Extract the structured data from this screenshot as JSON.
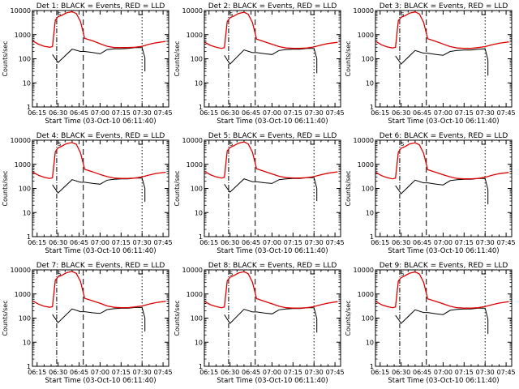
{
  "chart_data": {
    "type": "line",
    "scale": "log",
    "ylim": [
      1,
      10000
    ],
    "y_ticks": [
      1,
      10,
      100,
      1000,
      10000
    ],
    "y_tick_labels": [
      "1",
      "10",
      "100",
      "1000",
      "10000"
    ],
    "x_tick_labels": [
      "06:15",
      "06:30",
      "06:45",
      "07:00",
      "07:15",
      "07:30",
      "07:45"
    ],
    "ylabel": "Counts/sec",
    "xlabel": "Start Time (03-Oct-10 06:11:40)",
    "grid": false,
    "colors": {
      "events": "#000000",
      "lld": "#e00000"
    },
    "markers": [
      {
        "kind": "dash-dot",
        "time": "06:29"
      },
      {
        "kind": "dashed",
        "time": "06:48"
      },
      {
        "kind": "dotted",
        "time": "07:30"
      }
    ],
    "panels": [
      {
        "title": "Det 1: BLACK = Events, RED = LLD",
        "lld": {
          "time": [
            "06:12",
            "06:16",
            "06:20",
            "06:24",
            "06:26",
            "06:28",
            "06:30",
            "06:33",
            "06:36",
            "06:40",
            "06:43",
            "06:46",
            "06:49",
            "06:55",
            "07:00",
            "07:05",
            "07:10",
            "07:15",
            "07:20",
            "07:25",
            "07:30",
            "07:35",
            "07:40",
            "07:47"
          ],
          "value": [
            550,
            400,
            330,
            300,
            320,
            4000,
            5500,
            6500,
            8000,
            9000,
            7500,
            3500,
            700,
            550,
            420,
            330,
            290,
            290,
            290,
            300,
            330,
            400,
            460,
            530
          ]
        },
        "events": {
          "time": [
            "06:26",
            "06:28",
            "06:30",
            "06:40",
            "06:46",
            "06:49",
            "06:55",
            "07:00",
            "07:05",
            "07:10",
            "07:15",
            "07:20",
            "07:25",
            "07:30",
            "07:32",
            "07:32"
          ],
          "value": [
            150,
            100,
            70,
            250,
            200,
            200,
            180,
            160,
            240,
            260,
            260,
            270,
            290,
            290,
            110,
            30
          ]
        }
      },
      {
        "title": "Det 2: BLACK = Events, RED = LLD",
        "lld": {
          "time": [
            "06:12",
            "06:16",
            "06:20",
            "06:24",
            "06:26",
            "06:28",
            "06:30",
            "06:33",
            "06:36",
            "06:40",
            "06:43",
            "06:46",
            "06:49",
            "06:55",
            "07:00",
            "07:05",
            "07:10",
            "07:15",
            "07:20",
            "07:25",
            "07:30",
            "07:35",
            "07:40",
            "07:47"
          ],
          "value": [
            480,
            360,
            300,
            270,
            290,
            3500,
            5000,
            6000,
            7500,
            8500,
            7000,
            3200,
            650,
            500,
            400,
            320,
            280,
            270,
            270,
            280,
            310,
            370,
            430,
            480
          ]
        },
        "events": {
          "time": [
            "06:26",
            "06:28",
            "06:30",
            "06:40",
            "06:46",
            "06:49",
            "06:55",
            "07:00",
            "07:05",
            "07:10",
            "07:15",
            "07:20",
            "07:25",
            "07:30",
            "07:32",
            "07:32"
          ],
          "value": [
            140,
            90,
            60,
            230,
            180,
            180,
            160,
            150,
            220,
            240,
            250,
            250,
            270,
            270,
            100,
            25
          ]
        }
      },
      {
        "title": "Det 3: BLACK = Events, RED = LLD",
        "lld": {
          "time": [
            "06:12",
            "06:16",
            "06:20",
            "06:24",
            "06:26",
            "06:28",
            "06:30",
            "06:33",
            "06:36",
            "06:40",
            "06:43",
            "06:46",
            "06:49",
            "06:55",
            "07:00",
            "07:05",
            "07:10",
            "07:15",
            "07:20",
            "07:25",
            "07:30",
            "07:35",
            "07:40",
            "07:47"
          ],
          "value": [
            520,
            380,
            310,
            280,
            300,
            3800,
            5200,
            6200,
            7800,
            8800,
            7200,
            3300,
            680,
            520,
            410,
            320,
            280,
            270,
            270,
            290,
            320,
            380,
            440,
            500
          ]
        },
        "events": {
          "time": [
            "06:26",
            "06:28",
            "06:30",
            "06:40",
            "06:46",
            "06:49",
            "06:55",
            "07:00",
            "07:05",
            "07:10",
            "07:15",
            "07:20",
            "07:25",
            "07:30",
            "07:32",
            "07:32"
          ],
          "value": [
            130,
            90,
            60,
            220,
            170,
            170,
            150,
            140,
            200,
            220,
            230,
            230,
            250,
            260,
            90,
            20
          ]
        }
      },
      {
        "title": "Det 4: BLACK = Events, RED = LLD",
        "lld": {
          "time": [
            "06:12",
            "06:16",
            "06:20",
            "06:24",
            "06:26",
            "06:28",
            "06:30",
            "06:33",
            "06:36",
            "06:40",
            "06:43",
            "06:46",
            "06:49",
            "06:55",
            "07:00",
            "07:05",
            "07:10",
            "07:15",
            "07:20",
            "07:25",
            "07:30",
            "07:35",
            "07:40",
            "07:47"
          ],
          "value": [
            470,
            350,
            290,
            260,
            280,
            3300,
            4800,
            5800,
            7200,
            8000,
            6800,
            3000,
            620,
            480,
            380,
            310,
            270,
            260,
            260,
            270,
            300,
            360,
            420,
            470
          ]
        },
        "events": {
          "time": [
            "06:26",
            "06:28",
            "06:30",
            "06:40",
            "06:46",
            "06:49",
            "06:55",
            "07:00",
            "07:05",
            "07:10",
            "07:15",
            "07:20",
            "07:25",
            "07:30",
            "07:32",
            "07:32"
          ],
          "value": [
            140,
            95,
            65,
            230,
            180,
            180,
            160,
            150,
            220,
            240,
            250,
            250,
            270,
            270,
            100,
            28
          ]
        }
      },
      {
        "title": "Det 5: BLACK = Events, RED = LLD",
        "lld": {
          "time": [
            "06:12",
            "06:16",
            "06:20",
            "06:24",
            "06:26",
            "06:28",
            "06:30",
            "06:33",
            "06:36",
            "06:40",
            "06:43",
            "06:46",
            "06:49",
            "06:55",
            "07:00",
            "07:05",
            "07:10",
            "07:15",
            "07:20",
            "07:25",
            "07:30",
            "07:35",
            "07:40",
            "07:47"
          ],
          "value": [
            500,
            370,
            300,
            270,
            290,
            3600,
            5000,
            6000,
            7500,
            8500,
            7000,
            3200,
            650,
            500,
            400,
            320,
            280,
            270,
            270,
            280,
            310,
            370,
            430,
            490
          ]
        },
        "events": {
          "time": [
            "06:26",
            "06:28",
            "06:30",
            "06:40",
            "06:46",
            "06:49",
            "06:55",
            "07:00",
            "07:05",
            "07:10",
            "07:15",
            "07:20",
            "07:25",
            "07:30",
            "07:32",
            "07:32"
          ],
          "value": [
            150,
            100,
            70,
            250,
            190,
            190,
            170,
            160,
            230,
            250,
            260,
            260,
            280,
            280,
            100,
            30
          ]
        }
      },
      {
        "title": "Det 6: BLACK = Events, RED = LLD",
        "lld": {
          "time": [
            "06:12",
            "06:16",
            "06:20",
            "06:24",
            "06:26",
            "06:28",
            "06:30",
            "06:33",
            "06:36",
            "06:40",
            "06:43",
            "06:46",
            "06:49",
            "06:55",
            "07:00",
            "07:05",
            "07:10",
            "07:15",
            "07:20",
            "07:25",
            "07:30",
            "07:35",
            "07:40",
            "07:47"
          ],
          "value": [
            460,
            340,
            280,
            250,
            270,
            3200,
            4600,
            5500,
            7000,
            7800,
            6500,
            2900,
            600,
            460,
            370,
            300,
            260,
            250,
            250,
            260,
            290,
            350,
            410,
            460
          ]
        },
        "events": {
          "time": [
            "06:26",
            "06:28",
            "06:30",
            "06:40",
            "06:46",
            "06:49",
            "06:55",
            "07:00",
            "07:05",
            "07:10",
            "07:15",
            "07:20",
            "07:25",
            "07:30",
            "07:32",
            "07:32"
          ],
          "value": [
            130,
            90,
            60,
            220,
            170,
            170,
            150,
            140,
            210,
            230,
            240,
            240,
            260,
            260,
            90,
            22
          ]
        }
      },
      {
        "title": "Det 7: BLACK = Events, RED = LLD",
        "lld": {
          "time": [
            "06:12",
            "06:16",
            "06:20",
            "06:24",
            "06:26",
            "06:28",
            "06:30",
            "06:33",
            "06:36",
            "06:40",
            "06:43",
            "06:46",
            "06:49",
            "06:55",
            "07:00",
            "07:05",
            "07:10",
            "07:15",
            "07:20",
            "07:25",
            "07:30",
            "07:35",
            "07:40",
            "07:47"
          ],
          "value": [
            510,
            380,
            310,
            280,
            300,
            3700,
            5100,
            6100,
            7600,
            8600,
            7100,
            3300,
            660,
            510,
            410,
            320,
            280,
            270,
            270,
            290,
            320,
            380,
            440,
            500
          ]
        },
        "events": {
          "time": [
            "06:26",
            "06:28",
            "06:30",
            "06:40",
            "06:46",
            "06:49",
            "06:55",
            "07:00",
            "07:05",
            "07:10",
            "07:15",
            "07:20",
            "07:25",
            "07:30",
            "07:32",
            "07:32"
          ],
          "value": [
            140,
            95,
            65,
            240,
            185,
            185,
            165,
            155,
            225,
            245,
            255,
            255,
            275,
            275,
            100,
            28
          ]
        }
      },
      {
        "title": "Det 8: BLACK = Events, RED = LLD",
        "lld": {
          "time": [
            "06:12",
            "06:16",
            "06:20",
            "06:24",
            "06:26",
            "06:28",
            "06:30",
            "06:33",
            "06:36",
            "06:40",
            "06:43",
            "06:46",
            "06:49",
            "06:55",
            "07:00",
            "07:05",
            "07:10",
            "07:15",
            "07:20",
            "07:25",
            "07:30",
            "07:35",
            "07:40",
            "07:47"
          ],
          "value": [
            480,
            360,
            300,
            270,
            290,
            3500,
            4900,
            5900,
            7400,
            8400,
            6900,
            3100,
            640,
            490,
            390,
            310,
            270,
            260,
            260,
            270,
            300,
            360,
            420,
            480
          ]
        },
        "events": {
          "time": [
            "06:26",
            "06:28",
            "06:30",
            "06:40",
            "06:46",
            "06:49",
            "06:55",
            "07:00",
            "07:05",
            "07:10",
            "07:15",
            "07:20",
            "07:25",
            "07:30",
            "07:32",
            "07:32"
          ],
          "value": [
            140,
            90,
            60,
            230,
            180,
            180,
            160,
            150,
            220,
            240,
            250,
            250,
            270,
            270,
            95,
            25
          ]
        }
      },
      {
        "title": "Det 9: BLACK = Events, RED = LLD",
        "lld": {
          "time": [
            "06:12",
            "06:16",
            "06:20",
            "06:24",
            "06:26",
            "06:28",
            "06:30",
            "06:33",
            "06:36",
            "06:40",
            "06:43",
            "06:46",
            "06:49",
            "06:55",
            "07:00",
            "07:05",
            "07:10",
            "07:15",
            "07:20",
            "07:25",
            "07:30",
            "07:35",
            "07:40",
            "07:47"
          ],
          "value": [
            490,
            360,
            300,
            270,
            290,
            3400,
            4800,
            5800,
            7300,
            8200,
            6800,
            3100,
            630,
            490,
            390,
            310,
            270,
            260,
            260,
            270,
            300,
            360,
            420,
            480
          ]
        },
        "events": {
          "time": [
            "06:26",
            "06:28",
            "06:30",
            "06:40",
            "06:46",
            "06:49",
            "06:55",
            "07:00",
            "07:05",
            "07:10",
            "07:15",
            "07:20",
            "07:25",
            "07:30",
            "07:32",
            "07:32"
          ],
          "value": [
            130,
            90,
            60,
            220,
            170,
            170,
            150,
            140,
            210,
            230,
            240,
            240,
            260,
            260,
            90,
            22
          ]
        }
      }
    ]
  }
}
